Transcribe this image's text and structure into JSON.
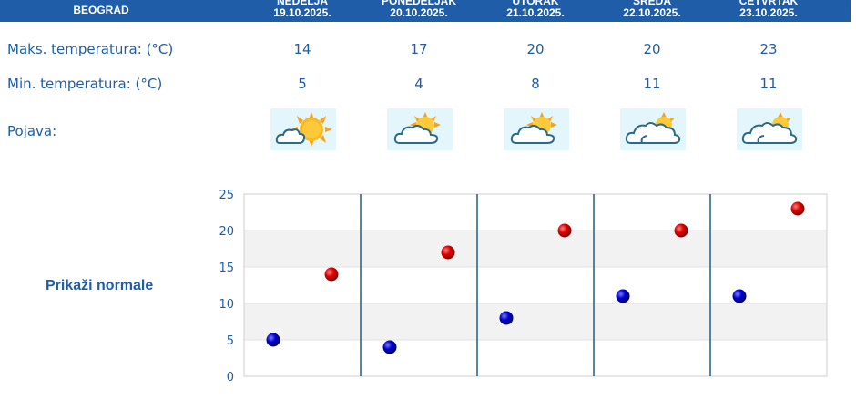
{
  "header": {
    "city": "BEOGRAD",
    "days": [
      {
        "day": "NEDELJA",
        "date": "19.10.2025."
      },
      {
        "day": "PONEDELJAK",
        "date": "20.10.2025."
      },
      {
        "day": "UTORAK",
        "date": "21.10.2025."
      },
      {
        "day": "SREDA",
        "date": "22.10.2025."
      },
      {
        "day": "ČETVRTAK",
        "date": "23.10.2025."
      }
    ]
  },
  "rows": {
    "max_label": "Maks. temperatura: (°C)",
    "min_label": "Min. temperatura: (°C)",
    "weather_label": "Pojava:"
  },
  "max_temps": [
    "14",
    "17",
    "20",
    "20",
    "23"
  ],
  "min_temps": [
    "5",
    "4",
    "8",
    "11",
    "11"
  ],
  "weather_icons": [
    "mostly-sunny-icon",
    "partly-cloudy-icon",
    "partly-cloudy-icon",
    "mostly-cloudy-icon",
    "mostly-cloudy-icon"
  ],
  "normals_link": "Prikaži normale",
  "colors": {
    "header_bg": "#1f5da8",
    "text": "#1f5da8",
    "max_marker": "#cc0000",
    "min_marker": "#0000b0"
  },
  "chart_data": {
    "type": "scatter",
    "ylim": [
      0,
      25
    ],
    "yticks": [
      "0",
      "5",
      "10",
      "15",
      "20",
      "25"
    ],
    "categories": [
      "19.10.2025.",
      "20.10.2025.",
      "21.10.2025.",
      "22.10.2025.",
      "23.10.2025."
    ],
    "series": [
      {
        "values": [
          5,
          4,
          8,
          11,
          11
        ]
      },
      {
        "values": [
          14,
          17,
          20,
          20,
          23
        ]
      }
    ],
    "grid": true
  }
}
